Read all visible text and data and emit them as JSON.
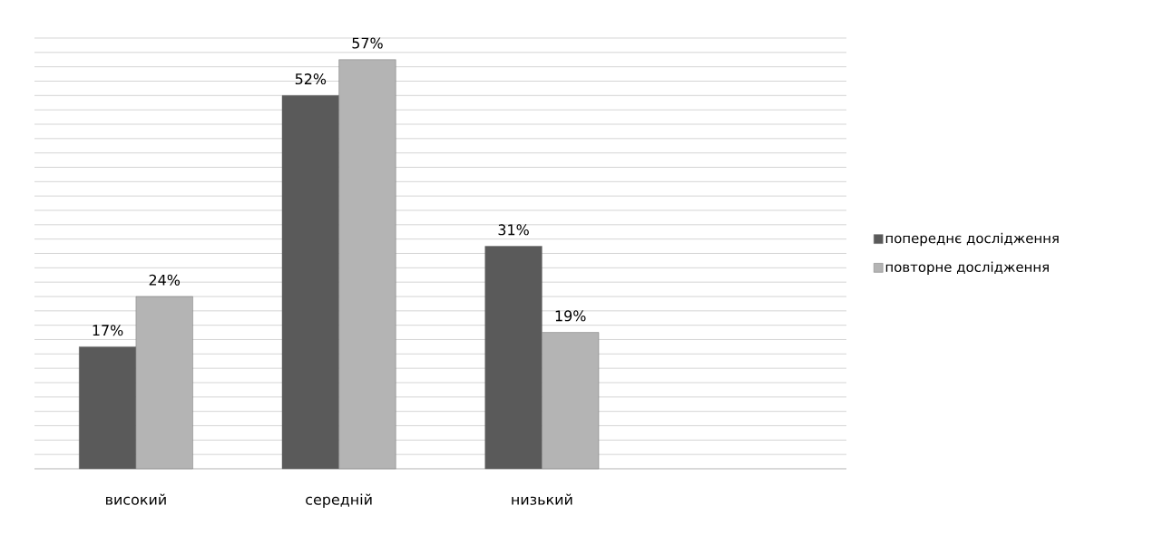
{
  "chart_data": {
    "type": "bar",
    "categories": [
      "високий",
      "середній",
      "низький",
      null
    ],
    "series": [
      {
        "name": "попереднє дослідження",
        "color": "#5a5a5a",
        "values": [
          17,
          52,
          31,
          null
        ],
        "value_labels": [
          "17%",
          "52%",
          "31%",
          null
        ]
      },
      {
        "name": "повторне дослідження",
        "color": "#b4b4b4",
        "values": [
          24,
          57,
          19,
          null
        ],
        "value_labels": [
          "24%",
          "57%",
          "19%",
          null
        ]
      }
    ],
    "ylim": [
      0,
      60
    ],
    "yticks": [
      {
        "value": 0,
        "label": null
      },
      {
        "value": 2,
        "label": null
      },
      {
        "value": 4,
        "label": null
      },
      {
        "value": 6,
        "label": null
      },
      {
        "value": 8,
        "label": null
      },
      {
        "value": 10,
        "label": null
      },
      {
        "value": 12,
        "label": null
      },
      {
        "value": 14,
        "label": null
      },
      {
        "value": 16,
        "label": null
      },
      {
        "value": 18,
        "label": null
      },
      {
        "value": 20,
        "label": null
      },
      {
        "value": 22,
        "label": null
      },
      {
        "value": 24,
        "label": null
      },
      {
        "value": 26,
        "label": null
      },
      {
        "value": 28,
        "label": null
      },
      {
        "value": 30,
        "label": null
      },
      {
        "value": 32,
        "label": null
      },
      {
        "value": 34,
        "label": null
      },
      {
        "value": 36,
        "label": null
      },
      {
        "value": 38,
        "label": null
      },
      {
        "value": 40,
        "label": null
      },
      {
        "value": 42,
        "label": null
      },
      {
        "value": 44,
        "label": null
      },
      {
        "value": 46,
        "label": null
      },
      {
        "value": 48,
        "label": null
      },
      {
        "value": 50,
        "label": null
      },
      {
        "value": 52,
        "label": null
      },
      {
        "value": 54,
        "label": null
      },
      {
        "value": 56,
        "label": null
      },
      {
        "value": 58,
        "label": null
      },
      {
        "value": 60,
        "label": null
      }
    ],
    "grid": "y",
    "legend": "right",
    "tick_labels": "x"
  }
}
